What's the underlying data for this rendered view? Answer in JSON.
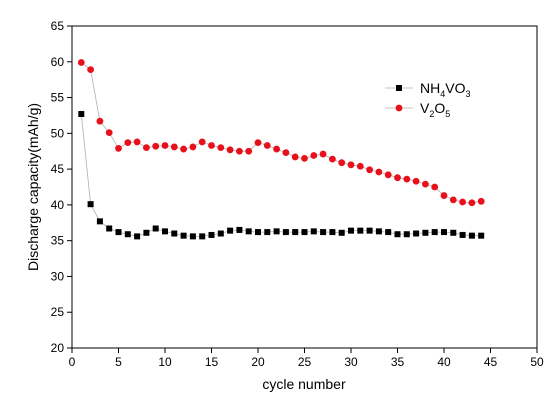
{
  "chart_data": {
    "type": "scatter",
    "xlabel": "cycle number",
    "ylabel": "Discharge capacity(mAh/g)",
    "xlim": [
      0,
      50
    ],
    "ylim": [
      20,
      65
    ],
    "x_ticks": [
      0,
      5,
      10,
      15,
      20,
      25,
      30,
      35,
      40,
      45,
      50
    ],
    "y_ticks": [
      20,
      25,
      30,
      35,
      40,
      45,
      50,
      55,
      60,
      65
    ],
    "grid": false,
    "legend_position": "top-right",
    "series": [
      {
        "legend_parts": [
          {
            "text": "NH",
            "sub": false
          },
          {
            "text": "4",
            "sub": true
          },
          {
            "text": "VO",
            "sub": false
          },
          {
            "text": "3",
            "sub": true
          }
        ],
        "marker": "square",
        "color": "#000000",
        "line_color": "#b0b0b0",
        "x": [
          1,
          2,
          3,
          4,
          5,
          6,
          7,
          8,
          9,
          10,
          11,
          12,
          13,
          14,
          15,
          16,
          17,
          18,
          19,
          20,
          21,
          22,
          23,
          24,
          25,
          26,
          27,
          28,
          29,
          30,
          31,
          32,
          33,
          34,
          35,
          36,
          37,
          38,
          39,
          40,
          41,
          42,
          43,
          44
        ],
        "y": [
          52.7,
          40.1,
          37.7,
          36.7,
          36.2,
          35.9,
          35.6,
          36.1,
          36.7,
          36.3,
          36.0,
          35.7,
          35.6,
          35.6,
          35.8,
          36.0,
          36.4,
          36.5,
          36.3,
          36.2,
          36.2,
          36.3,
          36.2,
          36.2,
          36.2,
          36.3,
          36.2,
          36.2,
          36.1,
          36.4,
          36.4,
          36.4,
          36.3,
          36.2,
          35.9,
          35.9,
          36.0,
          36.1,
          36.2,
          36.2,
          36.1,
          35.8,
          35.7,
          35.7
        ]
      },
      {
        "legend_parts": [
          {
            "text": "V",
            "sub": false
          },
          {
            "text": "2",
            "sub": true
          },
          {
            "text": "O",
            "sub": false
          },
          {
            "text": "5",
            "sub": true
          }
        ],
        "marker": "circle",
        "color": "#e8101a",
        "line_color": "#b0b0b0",
        "x": [
          1,
          2,
          3,
          4,
          5,
          6,
          7,
          8,
          9,
          10,
          11,
          12,
          13,
          14,
          15,
          16,
          17,
          18,
          19,
          20,
          21,
          22,
          23,
          24,
          25,
          26,
          27,
          28,
          29,
          30,
          31,
          32,
          33,
          34,
          35,
          36,
          37,
          38,
          39,
          40,
          41,
          42,
          43,
          44
        ],
        "y": [
          59.9,
          58.9,
          51.7,
          50.1,
          47.9,
          48.7,
          48.8,
          48.0,
          48.2,
          48.3,
          48.1,
          47.8,
          48.1,
          48.8,
          48.3,
          48.0,
          47.7,
          47.5,
          47.5,
          48.7,
          48.3,
          47.8,
          47.3,
          46.7,
          46.5,
          46.9,
          47.1,
          46.4,
          45.9,
          45.6,
          45.4,
          44.9,
          44.6,
          44.2,
          43.8,
          43.6,
          43.3,
          42.9,
          42.5,
          41.3,
          40.7,
          40.4,
          40.3,
          40.5
        ]
      }
    ]
  }
}
